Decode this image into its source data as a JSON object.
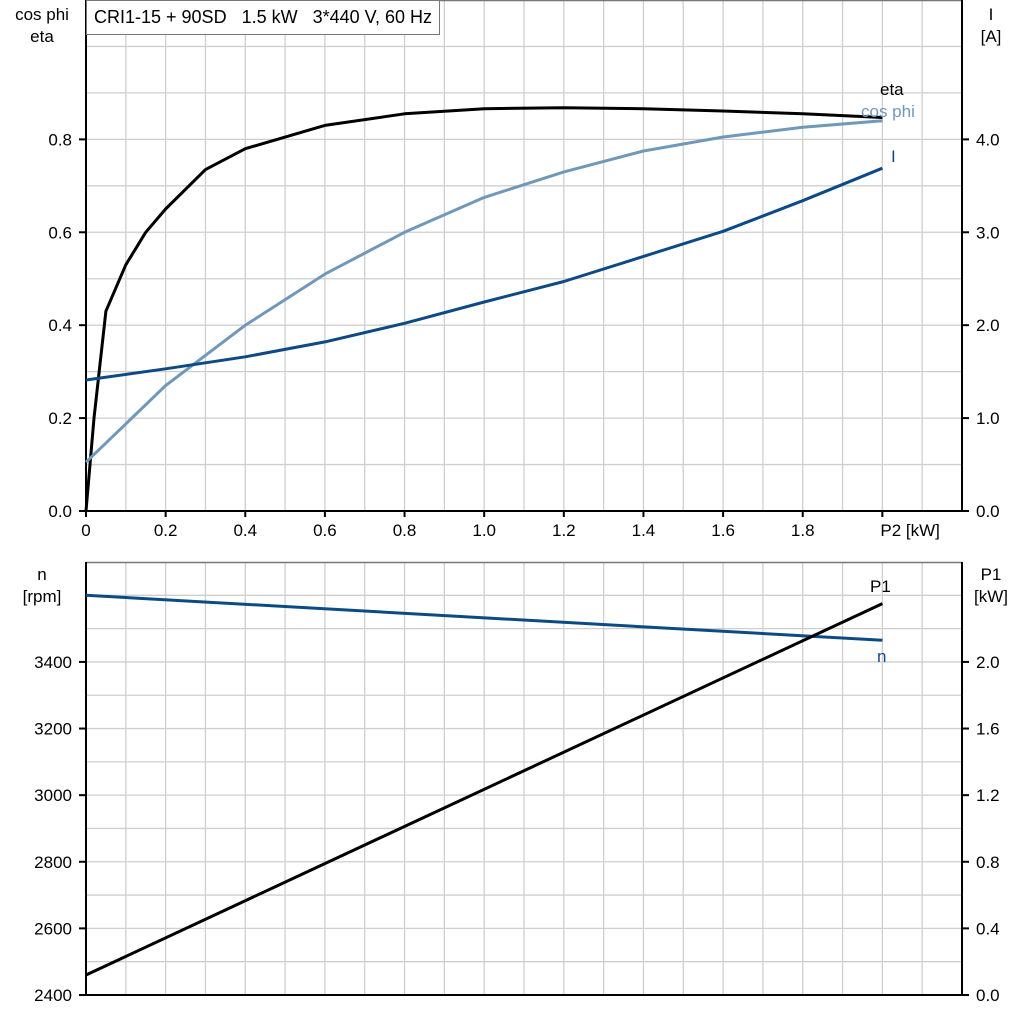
{
  "chart_data": [
    {
      "type": "line",
      "title": "CRI1-15 + 90SD   1.5 kW   3*440 V, 60 Hz",
      "xlabel": "P2 [kW]",
      "ylabel_left": [
        "cos phi",
        "eta"
      ],
      "ylabel_right": [
        "I",
        "[A]"
      ],
      "xlim": [
        0,
        2.2
      ],
      "ylim_left": [
        0,
        1.1
      ],
      "ylim_right": [
        0,
        5.5
      ],
      "x_ticks": [
        "0",
        "0.2",
        "0.4",
        "0.6",
        "0.8",
        "1.0",
        "1.2",
        "1.4",
        "1.6",
        "1.8"
      ],
      "y_ticks_left": [
        "0.0",
        "0.2",
        "0.4",
        "0.6",
        "0.8"
      ],
      "y_ticks_right": [
        "0.0",
        "1.0",
        "2.0",
        "3.0",
        "4.0"
      ],
      "grid": true,
      "series": [
        {
          "name": "eta",
          "axis": "left",
          "color": "#000000",
          "x": [
            0,
            0.02,
            0.05,
            0.1,
            0.15,
            0.2,
            0.3,
            0.4,
            0.6,
            0.8,
            1.0,
            1.2,
            1.4,
            1.6,
            1.8,
            2.0
          ],
          "y": [
            0,
            0.2,
            0.43,
            0.53,
            0.6,
            0.65,
            0.735,
            0.78,
            0.83,
            0.855,
            0.866,
            0.868,
            0.866,
            0.861,
            0.855,
            0.847
          ]
        },
        {
          "name": "cos phi",
          "axis": "left",
          "color": "#7098bb",
          "x": [
            0,
            0.2,
            0.4,
            0.6,
            0.8,
            1.0,
            1.2,
            1.4,
            1.6,
            1.8,
            2.0
          ],
          "y": [
            0.105,
            0.27,
            0.4,
            0.51,
            0.6,
            0.675,
            0.73,
            0.775,
            0.805,
            0.826,
            0.84
          ]
        },
        {
          "name": "I",
          "axis": "right",
          "color": "#0d4a85",
          "x": [
            0,
            0.2,
            0.4,
            0.6,
            0.8,
            1.0,
            1.2,
            1.4,
            1.6,
            1.8,
            2.0
          ],
          "y": [
            1.41,
            1.53,
            1.66,
            1.82,
            2.02,
            2.25,
            2.47,
            2.74,
            3.01,
            3.34,
            3.69
          ]
        }
      ]
    },
    {
      "type": "line",
      "xlim": [
        0,
        2.2
      ],
      "ylabel_left": [
        "n",
        "[rpm]"
      ],
      "ylabel_right": [
        "P1",
        "[kW]"
      ],
      "ylim_left": [
        2400,
        3700
      ],
      "ylim_right": [
        0,
        2.6
      ],
      "y_ticks_left": [
        "2400",
        "2600",
        "2800",
        "3000",
        "3200",
        "3400"
      ],
      "y_ticks_right": [
        "0.0",
        "0.4",
        "0.8",
        "1.2",
        "1.6",
        "2.0"
      ],
      "grid": true,
      "series": [
        {
          "name": "n",
          "axis": "left",
          "color": "#0d4a85",
          "x": [
            0,
            2.0
          ],
          "y": [
            3600,
            3465
          ]
        },
        {
          "name": "P1",
          "axis": "right",
          "color": "#000000",
          "x": [
            0,
            2.0
          ],
          "y": [
            0.12,
            2.35
          ]
        }
      ]
    }
  ]
}
